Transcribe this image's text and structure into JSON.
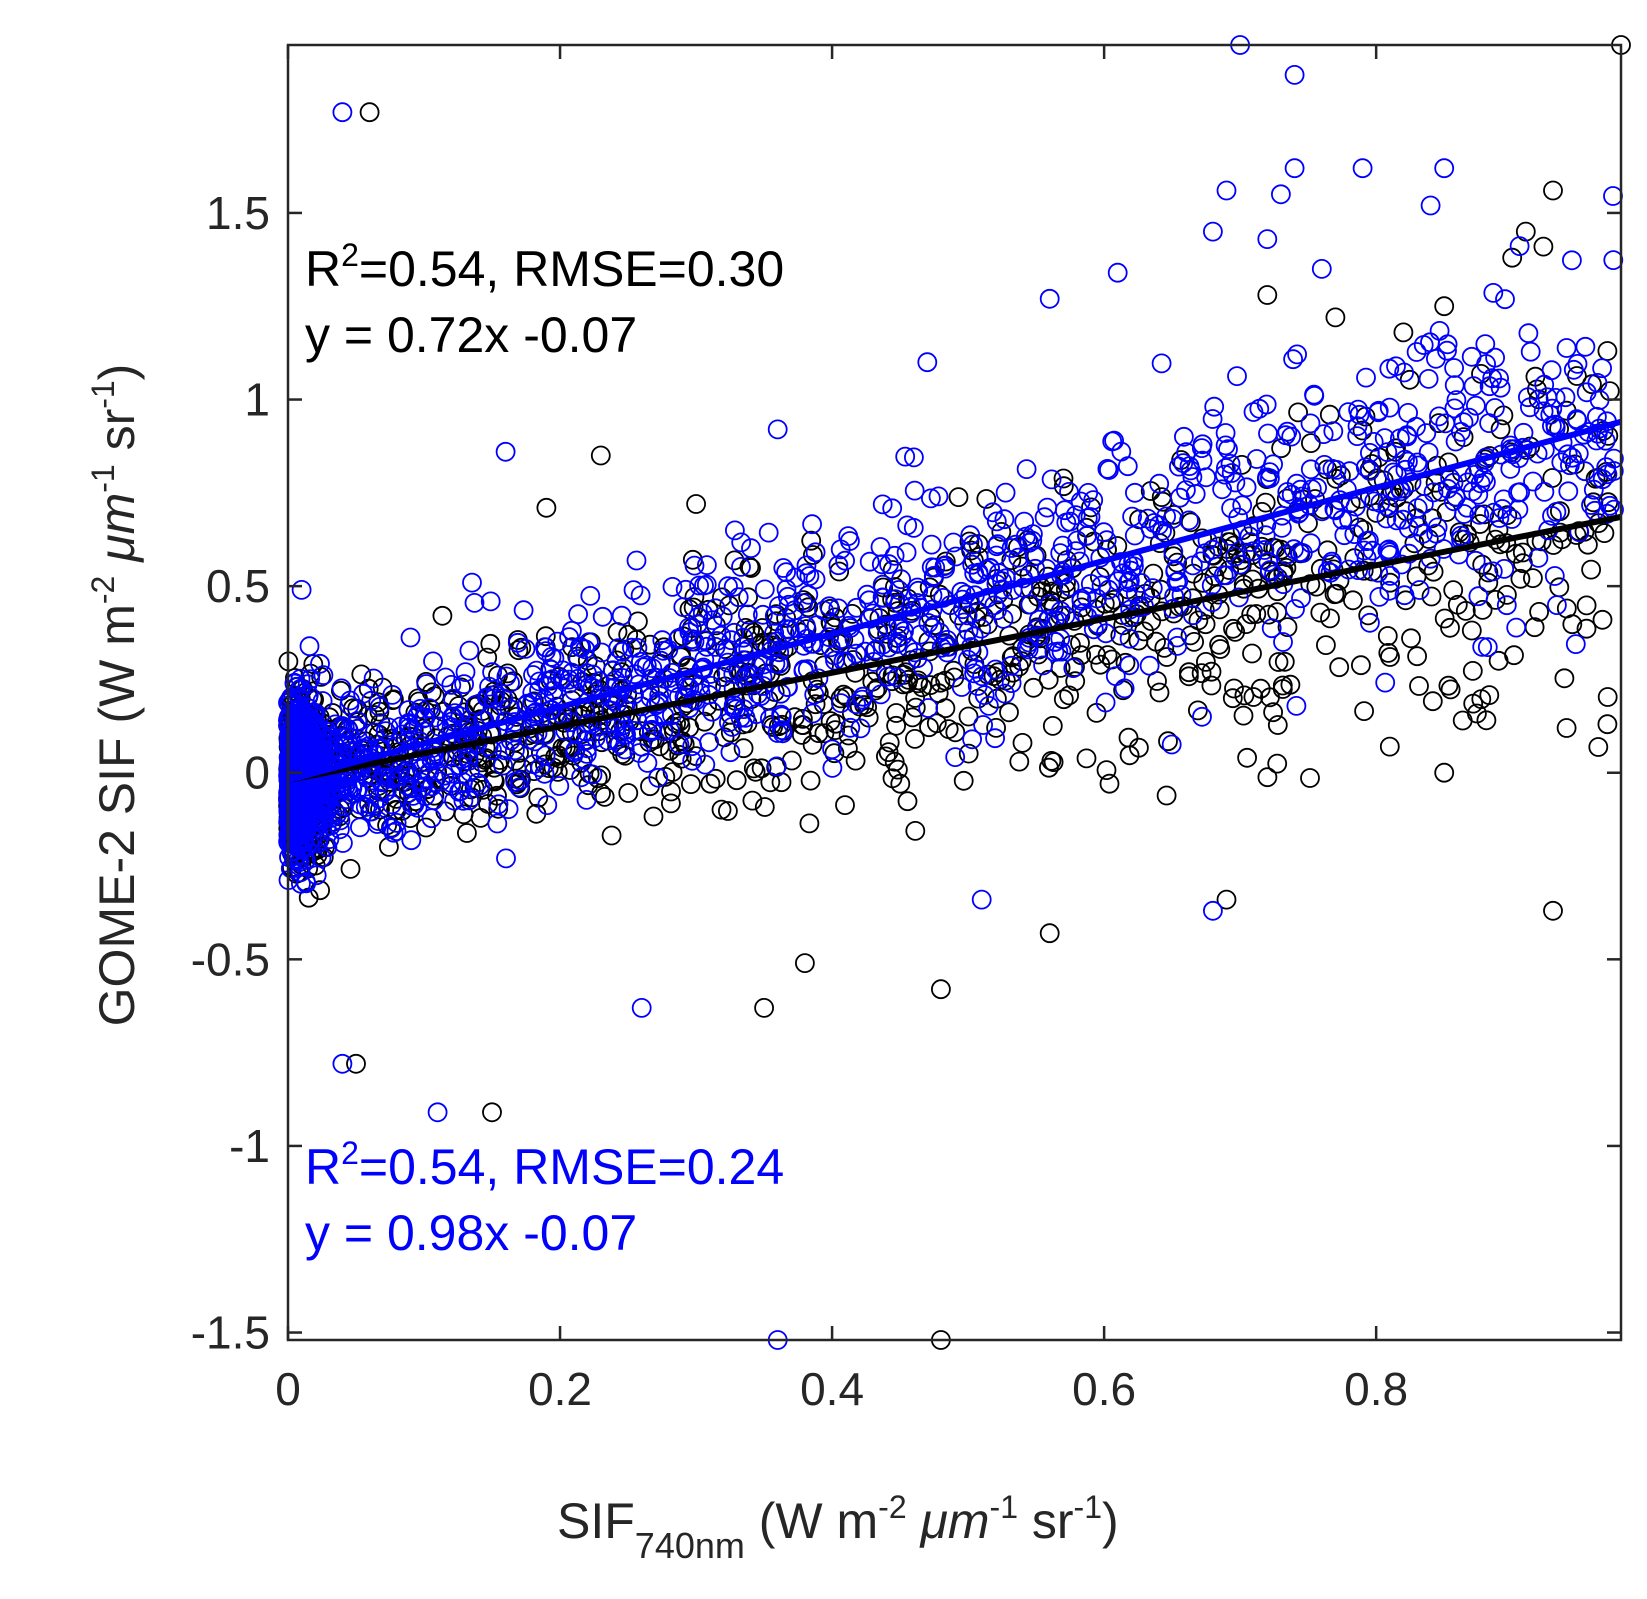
{
  "chart_data": {
    "type": "scatter",
    "title": "",
    "xlabel": {
      "main": "SIF",
      "sub": "740nm",
      "unit_prefix": " (W m",
      "m_exp": "-2",
      "mu": " μm",
      "mu_exp": "-1",
      "sr": " sr",
      "sr_exp": "-1",
      "close": ")"
    },
    "ylabel": {
      "main": "GOME-2 SIF (W m",
      "m_exp": "-2",
      "mu": " μm",
      "mu_exp": "-1",
      "sr": " sr",
      "sr_exp": "-1",
      "close": ")"
    },
    "xlim": [
      0,
      0.98
    ],
    "ylim": [
      -1.52,
      1.95
    ],
    "xticks": [
      0,
      0.2,
      0.4,
      0.6,
      0.8
    ],
    "xtick_labels": [
      "0",
      "0.2",
      "0.4",
      "0.6",
      "0.8"
    ],
    "yticks": [
      -1.5,
      -1,
      -0.5,
      0,
      0.5,
      1,
      1.5
    ],
    "ytick_labels": [
      "-1.5",
      "-1",
      "-0.5",
      "0",
      "0.5",
      "1",
      "1.5"
    ],
    "grid": false,
    "series": [
      {
        "name": "black",
        "color": "#000000",
        "marker": "open-circle",
        "fit": {
          "slope": 0.72,
          "intercept": -0.07
        },
        "annotation": {
          "r2_prefix": "R",
          "r2_exp": "2",
          "stats": "=0.54, RMSE=0.30",
          "equation": "y = 0.72x -0.07"
        },
        "sample_points": [
          [
            0.06,
            1.77
          ],
          [
            0.98,
            1.95
          ],
          [
            0.48,
            -1.52
          ],
          [
            0.05,
            -0.78
          ],
          [
            0.15,
            -0.91
          ],
          [
            0.93,
            -0.37
          ],
          [
            0.69,
            -0.34
          ],
          [
            0.56,
            -0.43
          ],
          [
            0.35,
            -0.63
          ],
          [
            0.48,
            -0.58
          ],
          [
            0.38,
            -0.51
          ],
          [
            0.23,
            0.85
          ],
          [
            0.19,
            0.71
          ],
          [
            0.3,
            0.72
          ],
          [
            0.93,
            1.56
          ],
          [
            0.91,
            1.45
          ],
          [
            0.9,
            1.38
          ],
          [
            0.85,
            1.25
          ],
          [
            0.82,
            1.18
          ],
          [
            0.77,
            1.22
          ],
          [
            0.72,
            1.28
          ],
          [
            0.97,
            1.13
          ],
          [
            0.94,
            0.97
          ],
          [
            0.88,
            0.84
          ],
          [
            0.86,
            0.45
          ],
          [
            0.89,
            0.3
          ],
          [
            0.94,
            0.12
          ],
          [
            0.97,
            0.13
          ],
          [
            0.85,
            0.0
          ],
          [
            0.81,
            0.07
          ]
        ]
      },
      {
        "name": "blue",
        "color": "#0000ff",
        "marker": "open-circle",
        "fit": {
          "slope": 0.98,
          "intercept": -0.07
        },
        "annotation": {
          "r2_prefix": "R",
          "r2_exp": "2",
          "stats": "=0.54, RMSE=0.24",
          "equation": "y = 0.98x -0.07"
        },
        "sample_points": [
          [
            0.04,
            1.77
          ],
          [
            0.7,
            1.95
          ],
          [
            0.74,
            1.87
          ],
          [
            0.74,
            1.62
          ],
          [
            0.79,
            1.62
          ],
          [
            0.85,
            1.62
          ],
          [
            0.69,
            1.56
          ],
          [
            0.73,
            1.55
          ],
          [
            0.84,
            1.52
          ],
          [
            0.68,
            1.45
          ],
          [
            0.72,
            1.43
          ],
          [
            0.76,
            1.35
          ],
          [
            0.56,
            1.27
          ],
          [
            0.61,
            1.34
          ],
          [
            0.47,
            1.1
          ],
          [
            0.36,
            0.92
          ],
          [
            0.16,
            0.86
          ],
          [
            0.36,
            -1.52
          ],
          [
            0.11,
            -0.91
          ],
          [
            0.04,
            -0.78
          ],
          [
            0.26,
            -0.63
          ],
          [
            0.68,
            -0.37
          ],
          [
            0.51,
            -0.34
          ],
          [
            0.01,
            0.49
          ],
          [
            0.97,
            0.8
          ]
        ]
      }
    ]
  }
}
